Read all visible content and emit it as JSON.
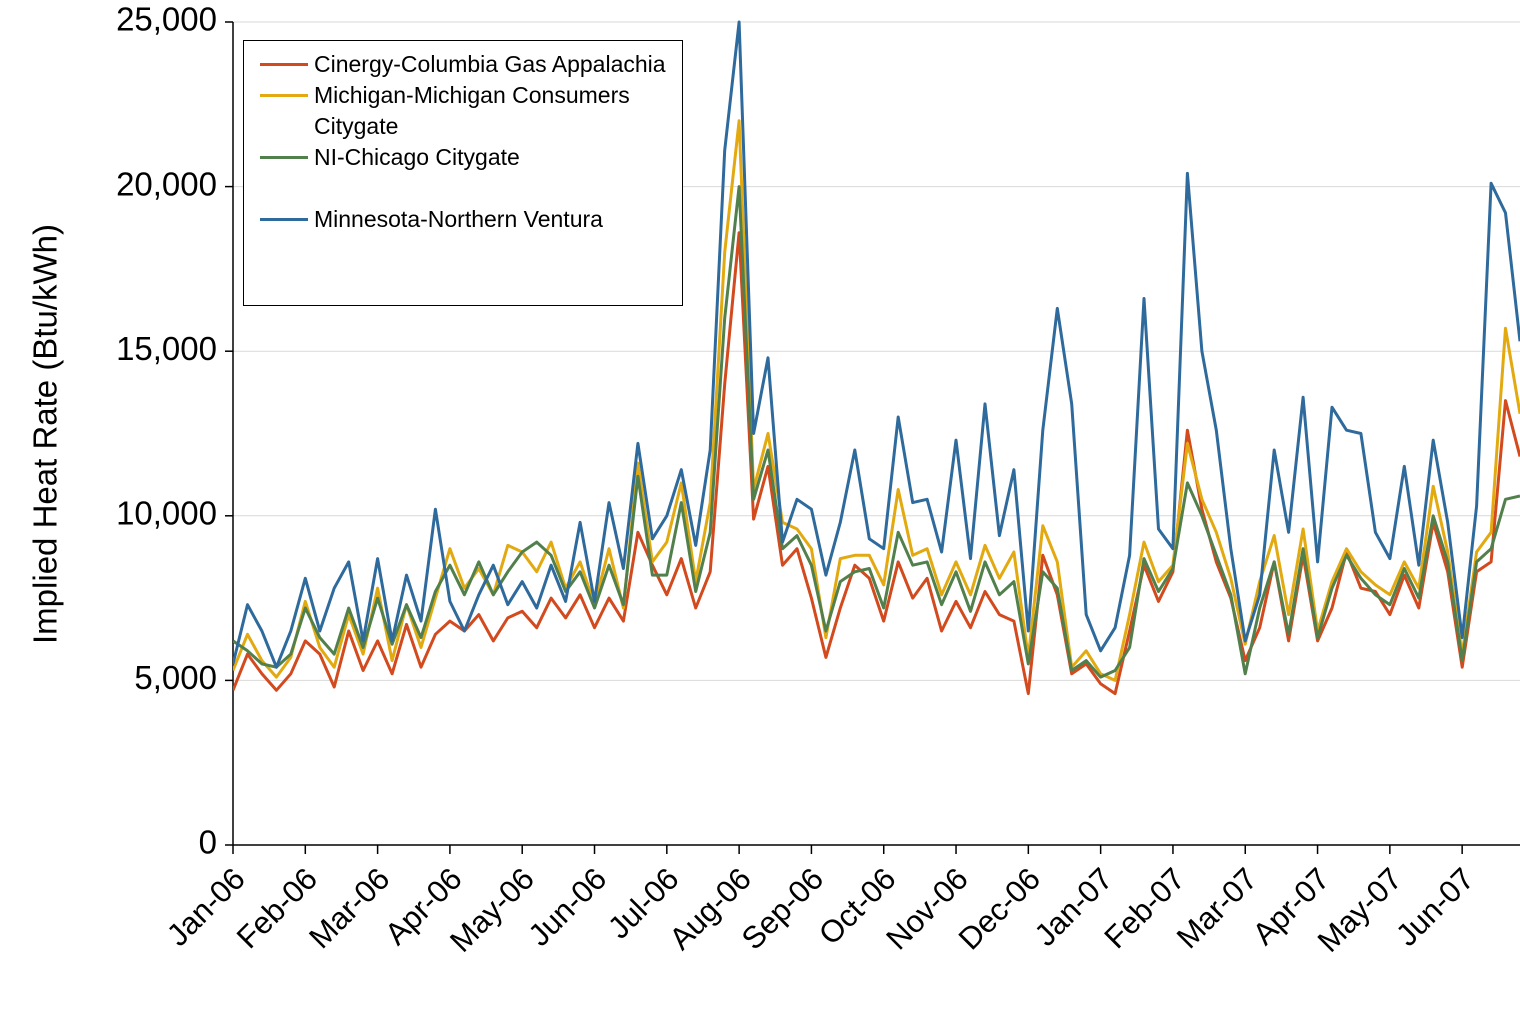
{
  "chart_data": {
    "type": "line",
    "y_label": "Implied Heat Rate (Btu/kWh)",
    "ylim": [
      0,
      25000
    ],
    "yticks": [
      0,
      {
        "value": 5000,
        "label": "5,000"
      },
      {
        "value": 10000,
        "label": "10,000"
      },
      {
        "value": 15000,
        "label": "15,000"
      },
      {
        "value": 20000,
        "label": "20,000"
      },
      {
        "value": 25000,
        "label": "25,000"
      }
    ],
    "grid": true,
    "legend": "upper-left",
    "categories": [
      "Jan-06",
      null,
      null,
      null,
      null,
      "Feb-06",
      null,
      null,
      null,
      null,
      "Mar-06",
      null,
      null,
      null,
      null,
      "Apr-06",
      null,
      null,
      null,
      null,
      "May-06",
      null,
      null,
      null,
      null,
      "Jun-06",
      null,
      null,
      null,
      null,
      "Jul-06",
      null,
      null,
      null,
      null,
      "Aug-06",
      null,
      null,
      null,
      null,
      "Sep-06",
      null,
      null,
      null,
      null,
      "Oct-06",
      null,
      null,
      null,
      null,
      "Nov-06",
      null,
      null,
      null,
      null,
      "Dec-06",
      null,
      null,
      null,
      null,
      "Jan-07",
      null,
      null,
      null,
      null,
      "Feb-07",
      null,
      null,
      null,
      null,
      "Mar-07",
      null,
      null,
      null,
      null,
      "Apr-07",
      null,
      null,
      null,
      null,
      "May-07",
      null,
      null,
      null,
      null,
      "Jun-07",
      null,
      null,
      null,
      null
    ],
    "series": [
      {
        "name": "Cinergy-Columbia Gas Appalachia",
        "color": "#d24a1e",
        "values": [
          4700,
          5800,
          5200,
          4700,
          5200,
          6200,
          5800,
          4800,
          6500,
          5300,
          6200,
          5200,
          6700,
          5400,
          6400,
          6800,
          6500,
          7000,
          6200,
          6900,
          7100,
          6600,
          7500,
          6900,
          7600,
          6600,
          7500,
          6800,
          9500,
          8500,
          7600,
          8700,
          7200,
          8300,
          14000,
          18600,
          9900,
          11500,
          8500,
          9000,
          7500,
          5700,
          7200,
          8500,
          8100,
          6800,
          8600,
          7500,
          8100,
          6500,
          7400,
          6600,
          7700,
          7000,
          6800,
          4600,
          8800,
          7600,
          5200,
          5500,
          4900,
          4600,
          6500,
          8500,
          7400,
          8300,
          12600,
          10200,
          8600,
          7500,
          5600,
          6600,
          8600,
          6200,
          8800,
          6200,
          7200,
          8900,
          7800,
          7700,
          7000,
          8200,
          7200,
          9800,
          8300,
          5400,
          8300,
          8600,
          13500,
          11800
        ]
      },
      {
        "name": "Michigan-Michigan Consumers Citygate",
        "color": "#e2aa10",
        "values": [
          5300,
          6400,
          5600,
          5100,
          5700,
          7400,
          6000,
          5400,
          7000,
          5800,
          7800,
          5600,
          7300,
          6000,
          7500,
          9000,
          7800,
          8400,
          7600,
          9100,
          8900,
          8300,
          9200,
          7800,
          8600,
          7300,
          9000,
          7200,
          11600,
          8600,
          9200,
          11000,
          8000,
          10400,
          18000,
          22000,
          10800,
          12500,
          9800,
          9600,
          9000,
          6300,
          8700,
          8800,
          8800,
          7900,
          10800,
          8800,
          9000,
          7600,
          8600,
          7600,
          9100,
          8100,
          8900,
          5700,
          9700,
          8600,
          5400,
          5900,
          5200,
          5000,
          7000,
          9200,
          8000,
          8500,
          12200,
          10500,
          9500,
          8100,
          6100,
          8000,
          9400,
          7000,
          9600,
          6500,
          8000,
          9000,
          8300,
          7900,
          7600,
          8600,
          7800,
          10900,
          8900,
          5800,
          8900,
          9500,
          15700,
          13100
        ]
      },
      {
        "name": "NI-Chicago Citygate",
        "color": "#52804c",
        "values": [
          6200,
          5900,
          5500,
          5400,
          5800,
          7200,
          6300,
          5800,
          7200,
          6000,
          7500,
          6100,
          7300,
          6300,
          7700,
          8500,
          7600,
          8600,
          7600,
          8300,
          8900,
          9200,
          8800,
          7700,
          8300,
          7200,
          8500,
          7300,
          11200,
          8200,
          8200,
          10400,
          7700,
          9500,
          16000,
          20000,
          10500,
          12000,
          9000,
          9400,
          8500,
          6500,
          8000,
          8300,
          8400,
          7200,
          9500,
          8500,
          8600,
          7300,
          8300,
          7100,
          8600,
          7600,
          8000,
          5500,
          8300,
          7800,
          5300,
          5600,
          5100,
          5300,
          6000,
          8700,
          7700,
          8400,
          11000,
          10000,
          8800,
          7600,
          5200,
          7200,
          8600,
          6400,
          9000,
          6300,
          7800,
          8800,
          8100,
          7600,
          7300,
          8400,
          7500,
          10000,
          8600,
          5600,
          8600,
          9000,
          10500,
          10600
        ]
      },
      {
        "name": "Minnesota-Northern Ventura",
        "color": "#2f6a9c",
        "values": [
          5500,
          7300,
          6500,
          5400,
          6500,
          8100,
          6500,
          7800,
          8600,
          6200,
          8700,
          6200,
          8200,
          6800,
          10200,
          7400,
          6500,
          7600,
          8500,
          7300,
          8000,
          7200,
          8500,
          7400,
          9800,
          7400,
          10400,
          8400,
          12200,
          9300,
          10000,
          11400,
          9100,
          12000,
          21100,
          25000,
          12500,
          14800,
          9200,
          10500,
          10200,
          8200,
          9800,
          12000,
          9300,
          9000,
          13000,
          10400,
          10500,
          8900,
          12300,
          8700,
          13400,
          9400,
          11400,
          6500,
          12600,
          16300,
          13400,
          7000,
          5900,
          6600,
          8800,
          16600,
          9600,
          9000,
          20400,
          15000,
          12600,
          9000,
          6200,
          7600,
          12000,
          9500,
          13600,
          8600,
          13300,
          12600,
          12500,
          9500,
          8700,
          11500,
          8500,
          12300,
          9800,
          6300,
          10300,
          20100,
          19200,
          15300
        ]
      }
    ]
  }
}
